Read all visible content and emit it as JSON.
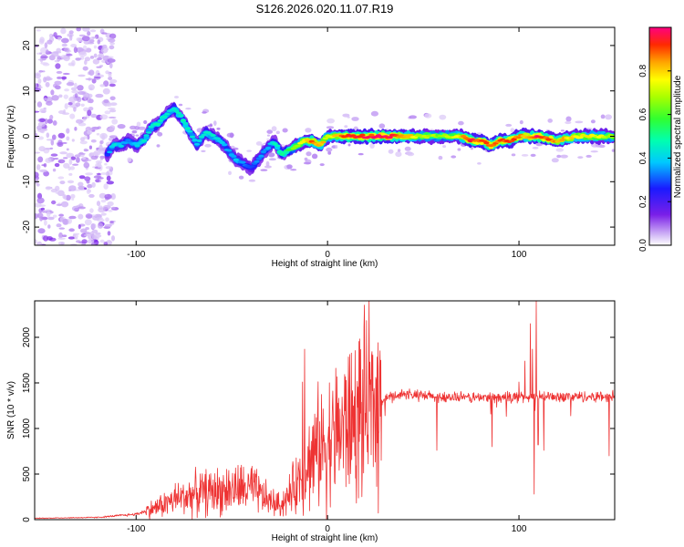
{
  "title": "S126.2026.020.11.07.R19",
  "chart_data": [
    {
      "type": "heatmap",
      "name": "spectrogram",
      "xlabel": "Height of straight line (km)",
      "ylabel": "Frequency (Hz)",
      "xlim": [
        -153,
        150
      ],
      "ylim": [
        -24,
        24
      ],
      "xticks": [
        -100,
        0,
        100
      ],
      "yticks": [
        -20,
        -10,
        0,
        10,
        20
      ],
      "x_tick_labels": [
        "-100",
        "0",
        "100"
      ],
      "y_tick_labels": [
        "-20",
        "-10",
        "0",
        "10",
        "20"
      ],
      "colorbar": {
        "label": "Normalized spectral amplitude",
        "range": [
          0,
          1
        ],
        "ticks": [
          0.0,
          0.2,
          0.4,
          0.6,
          0.8
        ],
        "tick_labels": [
          "0.0",
          "0.2",
          "0.4",
          "0.6",
          "0.8"
        ]
      },
      "ridge": {
        "x": [
          -115,
          -112,
          -108,
          -104,
          -100,
          -96,
          -92,
          -88,
          -84,
          -80,
          -76,
          -72,
          -68,
          -64,
          -60,
          -56,
          -52,
          -48,
          -44,
          -40,
          -36,
          -32,
          -28,
          -24,
          -20,
          -16,
          -12,
          -8,
          -4,
          0,
          10,
          20,
          30,
          40,
          50,
          60,
          70,
          75,
          80,
          85,
          90,
          95,
          100,
          105,
          110,
          120,
          130,
          140,
          150
        ],
        "freq": [
          -4,
          -2,
          -2,
          -1,
          -2,
          -1,
          2,
          3,
          5,
          6,
          4,
          1,
          -2,
          1,
          0,
          -1,
          -3,
          -5,
          -6,
          -7,
          -5,
          -3,
          -1,
          -4,
          -3,
          -2,
          -1,
          -1,
          -2,
          0,
          0,
          0,
          0,
          0,
          0,
          0,
          0,
          -1,
          -1,
          -2,
          -1,
          -1,
          0,
          0,
          0,
          -1,
          0,
          0,
          0
        ],
        "amp": [
          0.3,
          0.45,
          0.4,
          0.35,
          0.4,
          0.45,
          0.45,
          0.5,
          0.45,
          0.45,
          0.5,
          0.45,
          0.4,
          0.45,
          0.45,
          0.4,
          0.35,
          0.4,
          0.35,
          0.3,
          0.35,
          0.35,
          0.45,
          0.5,
          0.55,
          0.7,
          0.8,
          0.9,
          0.85,
          0.75,
          0.95,
          0.95,
          1.0,
          0.85,
          0.7,
          0.65,
          0.8,
          1.0,
          0.9,
          0.95,
          0.9,
          0.95,
          0.9,
          0.85,
          1.0,
          0.85,
          0.8,
          0.75,
          0.7
        ]
      }
    },
    {
      "type": "line",
      "name": "snr",
      "xlabel": "Height of straight line (km)",
      "ylabel": "SNR (10 * v/v)",
      "xlim": [
        -153,
        150
      ],
      "ylim": [
        0,
        2400
      ],
      "xticks": [
        -100,
        0,
        100
      ],
      "yticks": [
        0,
        500,
        1000,
        1500,
        2000
      ],
      "x_tick_labels": [
        "-100",
        "0",
        "100"
      ],
      "y_tick_labels": [
        "0",
        "500",
        "1000",
        "1500",
        "2000"
      ],
      "color": "#ee3333",
      "trend": {
        "x": [
          -153,
          -120,
          -100,
          -90,
          -80,
          -70,
          -60,
          -50,
          -40,
          -30,
          -25,
          -20,
          -15,
          -10,
          -5,
          0,
          5,
          10,
          15,
          20,
          25,
          30,
          35,
          40,
          45,
          50,
          60,
          70,
          80,
          90,
          100,
          110,
          120,
          130,
          140,
          150
        ],
        "y": [
          15,
          25,
          60,
          130,
          220,
          280,
          310,
          330,
          340,
          200,
          160,
          260,
          450,
          620,
          780,
          860,
          960,
          1040,
          1120,
          1200,
          1270,
          1330,
          1360,
          1380,
          1370,
          1355,
          1345,
          1340,
          1340,
          1340,
          1345,
          1345,
          1350,
          1350,
          1350,
          1355
        ]
      },
      "spikes": [
        {
          "x": -12,
          "y": 1870
        },
        {
          "x": -13,
          "y": 1510
        },
        {
          "x": 28,
          "y": 650
        },
        {
          "x": 57,
          "y": 760
        },
        {
          "x": 86,
          "y": 800
        },
        {
          "x": 100,
          "y": 1510
        },
        {
          "x": 103,
          "y": 1740
        },
        {
          "x": 106,
          "y": 2150
        },
        {
          "x": 107,
          "y": 1870
        },
        {
          "x": 108,
          "y": 280
        },
        {
          "x": 109,
          "y": 2400
        },
        {
          "x": 110,
          "y": 820
        },
        {
          "x": 113,
          "y": 760
        },
        {
          "x": 147,
          "y": 700
        }
      ]
    }
  ]
}
